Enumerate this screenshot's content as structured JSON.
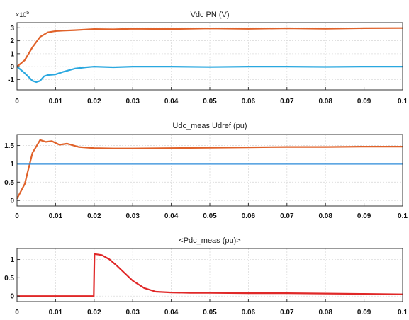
{
  "chart_data": [
    {
      "type": "line",
      "title": "Vdc PN (V)",
      "y_exponent_label": "×10^5",
      "y_exponent_base": "×10",
      "y_exponent_power": "5",
      "xlim": [
        0,
        0.1
      ],
      "ylim": [
        -1.8,
        3.4
      ],
      "x_ticks": [
        0,
        0.01,
        0.02,
        0.03,
        0.04,
        0.05,
        0.06,
        0.07,
        0.08,
        0.09,
        0.1
      ],
      "x_tick_labels": [
        "0",
        "0.01",
        "0.02",
        "0.03",
        "0.04",
        "0.05",
        "0.06",
        "0.07",
        "0.08",
        "0.09",
        "0.1"
      ],
      "y_ticks": [
        -1,
        0,
        1,
        2,
        3
      ],
      "y_tick_labels": [
        "-1",
        "0",
        "1",
        "2",
        "3"
      ],
      "grid": true,
      "series": [
        {
          "color": "#E0622A",
          "x": [
            0,
            0.002,
            0.004,
            0.006,
            0.008,
            0.01,
            0.012,
            0.015,
            0.018,
            0.02,
            0.025,
            0.03,
            0.04,
            0.05,
            0.06,
            0.07,
            0.08,
            0.09,
            0.1
          ],
          "y": [
            0,
            0.5,
            1.5,
            2.3,
            2.65,
            2.75,
            2.78,
            2.82,
            2.87,
            2.9,
            2.88,
            2.93,
            2.9,
            2.95,
            2.92,
            2.96,
            2.93,
            2.97,
            2.98
          ]
        },
        {
          "color": "#2AA8E0",
          "x": [
            0,
            0.002,
            0.004,
            0.005,
            0.006,
            0.007,
            0.008,
            0.01,
            0.012,
            0.015,
            0.018,
            0.02,
            0.025,
            0.03,
            0.04,
            0.05,
            0.06,
            0.07,
            0.08,
            0.09,
            0.1
          ],
          "y": [
            0,
            -0.5,
            -1.1,
            -1.2,
            -1.1,
            -0.75,
            -0.65,
            -0.6,
            -0.4,
            -0.15,
            -0.05,
            0,
            -0.05,
            0,
            0,
            -0.03,
            0,
            0,
            -0.02,
            0,
            0
          ]
        }
      ]
    },
    {
      "type": "line",
      "title": "Udc_meas Udref (pu)",
      "xlim": [
        0,
        0.1
      ],
      "ylim": [
        -0.15,
        1.8
      ],
      "x_ticks": [
        0,
        0.01,
        0.02,
        0.03,
        0.04,
        0.05,
        0.06,
        0.07,
        0.08,
        0.09,
        0.1
      ],
      "x_tick_labels": [
        "0",
        "0.01",
        "0.02",
        "0.03",
        "0.04",
        "0.05",
        "0.06",
        "0.07",
        "0.08",
        "0.09",
        "0.1"
      ],
      "y_ticks": [
        0,
        0.5,
        1,
        1.5
      ],
      "y_tick_labels": [
        "0",
        "0.5",
        "1",
        "1.5"
      ],
      "grid": true,
      "series": [
        {
          "color": "#E0622A",
          "x": [
            0,
            0.002,
            0.004,
            0.006,
            0.0075,
            0.009,
            0.011,
            0.013,
            0.016,
            0.02,
            0.025,
            0.03,
            0.04,
            0.05,
            0.06,
            0.07,
            0.08,
            0.09,
            0.1
          ],
          "y": [
            0.05,
            0.45,
            1.3,
            1.65,
            1.6,
            1.62,
            1.52,
            1.55,
            1.46,
            1.43,
            1.42,
            1.42,
            1.43,
            1.44,
            1.45,
            1.46,
            1.46,
            1.47,
            1.47
          ]
        },
        {
          "color": "#2A8AD8",
          "x": [
            0,
            0.1
          ],
          "y": [
            1,
            1
          ]
        }
      ]
    },
    {
      "type": "line",
      "title": "<Pdc_meas (pu)>",
      "xlim": [
        0,
        0.1
      ],
      "ylim": [
        -0.15,
        1.3
      ],
      "x_ticks": [
        0,
        0.01,
        0.02,
        0.03,
        0.04,
        0.05,
        0.06,
        0.07,
        0.08,
        0.09,
        0.1
      ],
      "x_tick_labels": [
        "0",
        "0.01",
        "0.02",
        "0.03",
        "0.04",
        "0.05",
        "0.06",
        "0.07",
        "0.08",
        "0.09",
        "0.1"
      ],
      "y_ticks": [
        0,
        0.5,
        1
      ],
      "y_tick_labels": [
        "0",
        "0.5",
        "1"
      ],
      "grid": true,
      "series": [
        {
          "color": "#E02828",
          "x": [
            0,
            0.0199,
            0.0201,
            0.022,
            0.024,
            0.026,
            0.028,
            0.03,
            0.033,
            0.036,
            0.04,
            0.045,
            0.05,
            0.06,
            0.07,
            0.08,
            0.09,
            0.1
          ],
          "y": [
            0,
            0,
            1.15,
            1.12,
            1.0,
            0.82,
            0.62,
            0.42,
            0.22,
            0.12,
            0.1,
            0.09,
            0.09,
            0.08,
            0.08,
            0.07,
            0.06,
            0.05
          ]
        }
      ]
    }
  ]
}
